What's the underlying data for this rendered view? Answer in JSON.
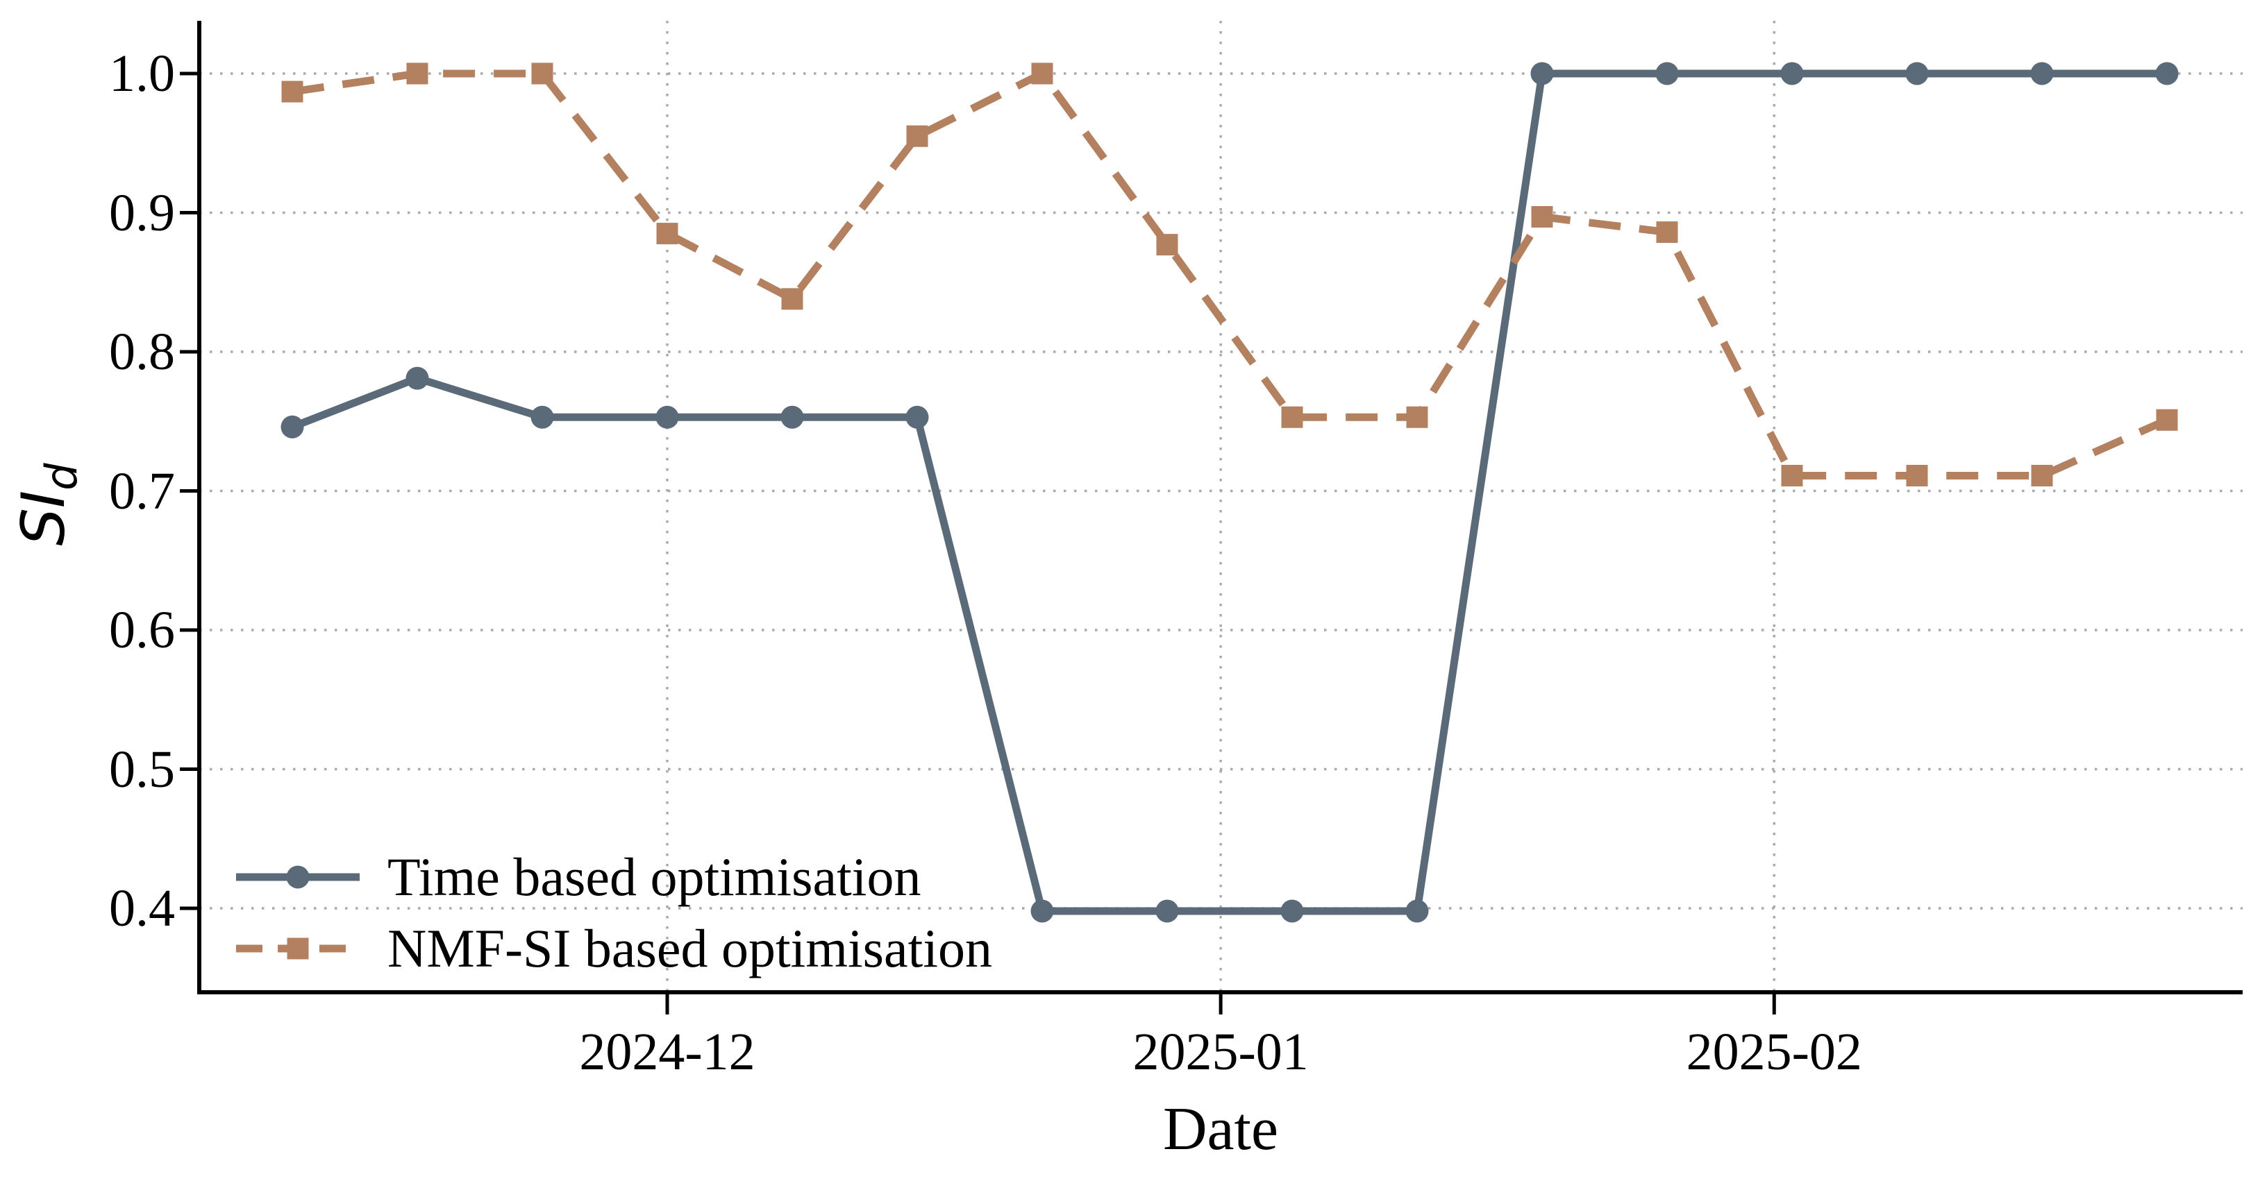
{
  "chart_data": {
    "type": "line",
    "title": "",
    "xlabel": "Date",
    "ylabel": "SI_d",
    "ylabel_main": "SI",
    "ylabel_sub": "d",
    "x": [
      "2024-11-10",
      "2024-11-17",
      "2024-11-24",
      "2024-12-01",
      "2024-12-08",
      "2024-12-15",
      "2024-12-22",
      "2024-12-29",
      "2025-01-05",
      "2025-01-12",
      "2025-01-19",
      "2025-01-26",
      "2025-02-02",
      "2025-02-09",
      "2025-02-16",
      "2025-02-23"
    ],
    "series": [
      {
        "name": "Time based optimisation",
        "color": "#5a6a79",
        "line_style": "solid",
        "marker": "circle",
        "values": [
          0.746,
          0.781,
          0.753,
          0.753,
          0.753,
          0.753,
          0.398,
          0.398,
          0.398,
          0.398,
          1.0,
          1.0,
          1.0,
          1.0,
          1.0,
          1.0
        ]
      },
      {
        "name": "NMF-SI based optimisation",
        "color": "#b3815f",
        "line_style": "dashed",
        "marker": "square",
        "values": [
          0.987,
          1.0,
          1.0,
          0.885,
          0.838,
          0.955,
          1.0,
          0.877,
          0.753,
          0.753,
          0.897,
          0.886,
          0.711,
          0.711,
          0.711,
          0.751
        ]
      }
    ],
    "yticks": [
      1.0,
      0.9,
      0.8,
      0.7,
      0.6,
      0.5,
      0.4
    ],
    "ytick_labels": [
      "1.0",
      "0.9",
      "0.8",
      "0.7",
      "0.6",
      "0.5",
      "0.4"
    ],
    "xticks": [
      "2024-12",
      "2025-01",
      "2025-02"
    ],
    "xtick_dates": [
      "2024-12-01",
      "2025-01-01",
      "2025-02-01"
    ],
    "ylim": [
      0.34,
      1.04
    ],
    "grid": "dotted",
    "grid_color": "#aaaaaa",
    "axis_color": "#000000",
    "legend_position": "lower left"
  }
}
